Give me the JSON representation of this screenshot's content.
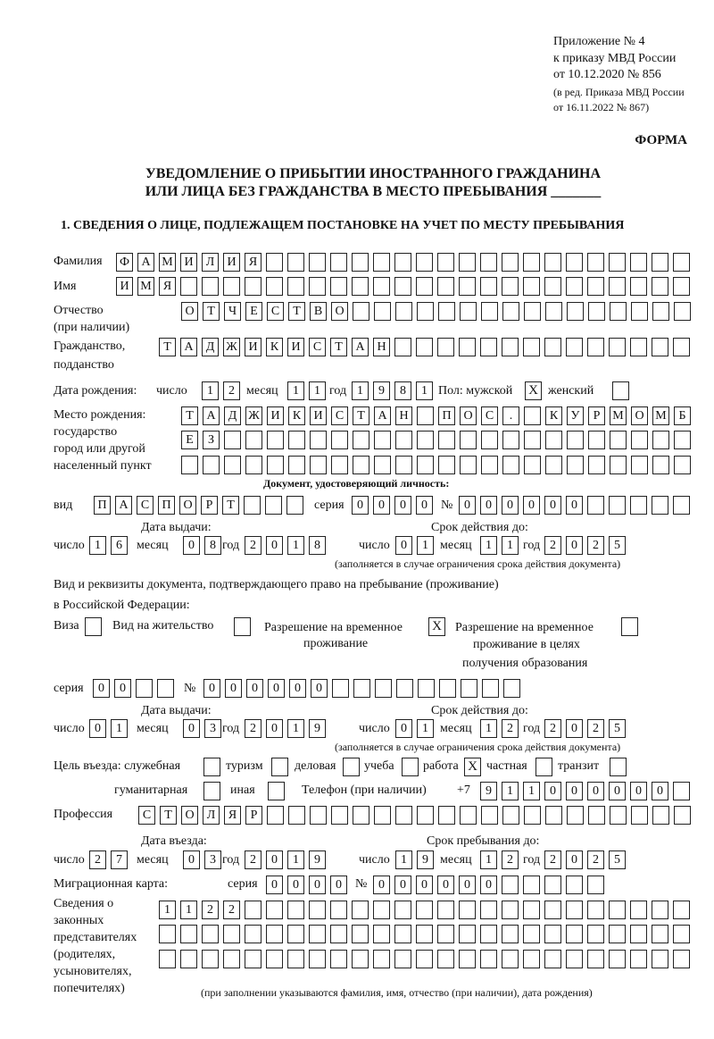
{
  "header": {
    "appendix": "Приложение № 4",
    "order": "к приказу МВД России",
    "order_date": "от 10.12.2020 № 856",
    "edition1": "(в ред. Приказа МВД России",
    "edition2": "от 16.11.2022 № 867)",
    "form": "ФОРМА",
    "title1": "УВЕДОМЛЕНИЕ О ПРИБЫТИИ ИНОСТРАННОГО ГРАЖДАНИНА",
    "title2": "ИЛИ ЛИЦА БЕЗ ГРАЖДАНСТВА В МЕСТО ПРЕБЫВАНИЯ _______",
    "section1": "1. СВЕДЕНИЯ О ЛИЦЕ, ПОДЛЕЖАЩЕМ ПОСТАНОВКЕ НА УЧЕТ ПО МЕСТУ ПРЕБЫВАНИЯ"
  },
  "labels": {
    "surname": "Фамилия",
    "name": "Имя",
    "patronymic": "Отчество",
    "patronymic_note": "(при наличии)",
    "citizenship": "Гражданство,",
    "citizenship2": "подданство",
    "birth_date": "Дата рождения:",
    "day": "число",
    "month": "месяц",
    "year": "год",
    "sex": "Пол: мужской",
    "female": "женский",
    "birthplace1": "Место рождения:",
    "birthplace2": "государство",
    "birthplace3": "город или другой",
    "birthplace4": "населенный пункт",
    "id_doc": "Документ, удостоверяющий личность:",
    "kind": "вид",
    "series": "серия",
    "number": "№",
    "issue_date": "Дата выдачи:",
    "valid_until": "Срок действия до:",
    "valid_note": "(заполняется в случае ограничения срока действия документа)",
    "permit1": "Вид и реквизиты документа, подтверждающего право на пребывание (проживание)",
    "permit2": "в Российской Федерации:",
    "visa": "Виза",
    "residence": "Вид на жительство",
    "trp1": "Разрешение на временное",
    "trp2": "проживание",
    "trp_edu1": "Разрешение на временное",
    "trp_edu2": "проживание в целях",
    "trp_edu3": "получения образования",
    "purpose": "Цель въезда: служебная",
    "tourism": "туризм",
    "business": "деловая",
    "study": "учеба",
    "work": "работа",
    "private": "частная",
    "transit": "транзит",
    "humanitarian": "гуманитарная",
    "other": "иная",
    "phone": "Телефон (при наличии)",
    "phone_prefix": "+7",
    "profession": "Профессия",
    "entry_date": "Дата въезда:",
    "stay_until": "Срок пребывания до:",
    "migration_card": "Миграционная карта:",
    "reps1": "Сведения о",
    "reps2": "законных",
    "reps3": "представителях",
    "reps4": "(родителях,",
    "reps5": "усыновителях,",
    "reps6": "попечителях)",
    "reps_note": "(при заполнении указываются фамилия, имя, отчество (при наличии), дата рождения)"
  },
  "values": {
    "surname": "ФАМИЛИЯ",
    "name": "ИМЯ",
    "patronymic": "ОТЧЕСТВО",
    "citizenship": "ТАДЖИКИСТАН",
    "birth_day": "12",
    "birth_month": "11",
    "birth_year": "1981",
    "sex_male": "X",
    "sex_female": "",
    "birthplace_1": "ТАДЖИКИСТАН ПОС. КУРМОМБ",
    "birthplace_2": "ЕЗ",
    "birthplace_3": "",
    "doc_kind": "ПАСПОРТ",
    "doc_series": "0000",
    "doc_number": "000000",
    "doc_issue_day": "16",
    "doc_issue_month": "08",
    "doc_issue_year": "2018",
    "doc_valid_day": "01",
    "doc_valid_month": "11",
    "doc_valid_year": "2025",
    "permit_visa": "",
    "permit_residence": "",
    "permit_trp": "X",
    "permit_trp_edu": "",
    "permit_series": "00",
    "permit_number": "000000",
    "permit_issue_day": "01",
    "permit_issue_month": "03",
    "permit_issue_year": "2019",
    "permit_valid_day": "01",
    "permit_valid_month": "12",
    "permit_valid_year": "2025",
    "purpose_official": "",
    "purpose_tourism": "",
    "purpose_business": "",
    "purpose_study": "",
    "purpose_work": "X",
    "purpose_private": "",
    "purpose_transit": "",
    "purpose_humanitarian": "",
    "purpose_other": "",
    "phone": "911000000",
    "profession": "СТОЛЯР",
    "entry_day": "27",
    "entry_month": "03",
    "entry_year": "2019",
    "stay_day": "19",
    "stay_month": "12",
    "stay_year": "2025",
    "mc_series": "0000",
    "mc_number": "000000",
    "reps_1": "1122",
    "reps_2": "",
    "reps_3": ""
  }
}
